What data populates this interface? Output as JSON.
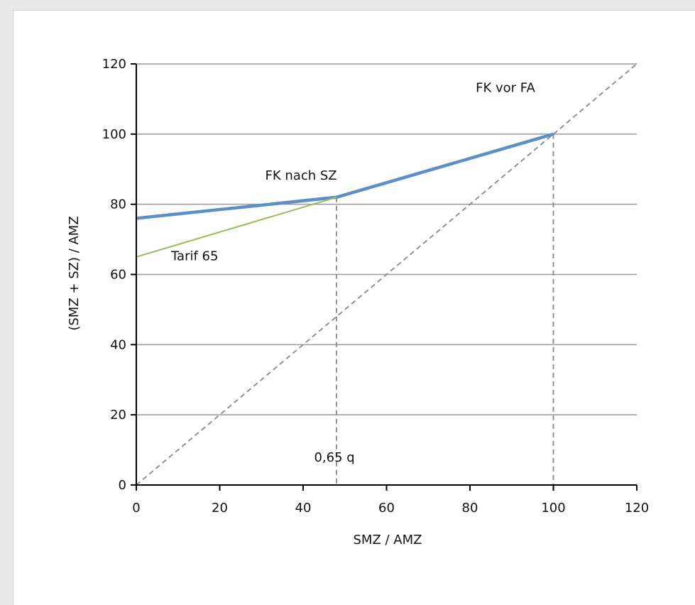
{
  "chart_data": {
    "type": "line",
    "xlabel": "SMZ / AMZ",
    "ylabel": "(SMZ + SZ) / AMZ",
    "xlim": [
      0,
      120
    ],
    "ylim": [
      0,
      120
    ],
    "x_ticks": [
      "0",
      "20",
      "40",
      "60",
      "80",
      "100",
      "120"
    ],
    "y_ticks": [
      "0",
      "20",
      "40",
      "60",
      "80",
      "100",
      "120"
    ],
    "grid": "horizontal",
    "series": [
      {
        "name": "FK nach SZ",
        "color": "#5b8fc7",
        "style": "solid-thick",
        "points": [
          [
            0,
            76
          ],
          [
            48,
            82
          ],
          [
            100,
            100
          ]
        ]
      },
      {
        "name": "Tarif 65",
        "color": "#9bbb59",
        "style": "solid-thin",
        "points": [
          [
            0,
            65
          ],
          [
            48,
            82
          ]
        ]
      },
      {
        "name": "FK vor FA",
        "color": "#888888",
        "style": "dashed",
        "points": [
          [
            0,
            0
          ],
          [
            120,
            120
          ]
        ]
      }
    ],
    "vertical_guides": [
      {
        "x": 48,
        "y_top": 82
      },
      {
        "x": 100,
        "y_top": 100
      }
    ],
    "annotations": [
      {
        "text": "FK vor FA",
        "x": 88.5,
        "y": 112
      },
      {
        "text": "FK nach SZ",
        "x": 39.5,
        "y": 87
      },
      {
        "text": "Tarif 65",
        "x": 14,
        "y": 64
      },
      {
        "text": "0,65 q",
        "x": 47.5,
        "y": 6.7
      }
    ]
  }
}
